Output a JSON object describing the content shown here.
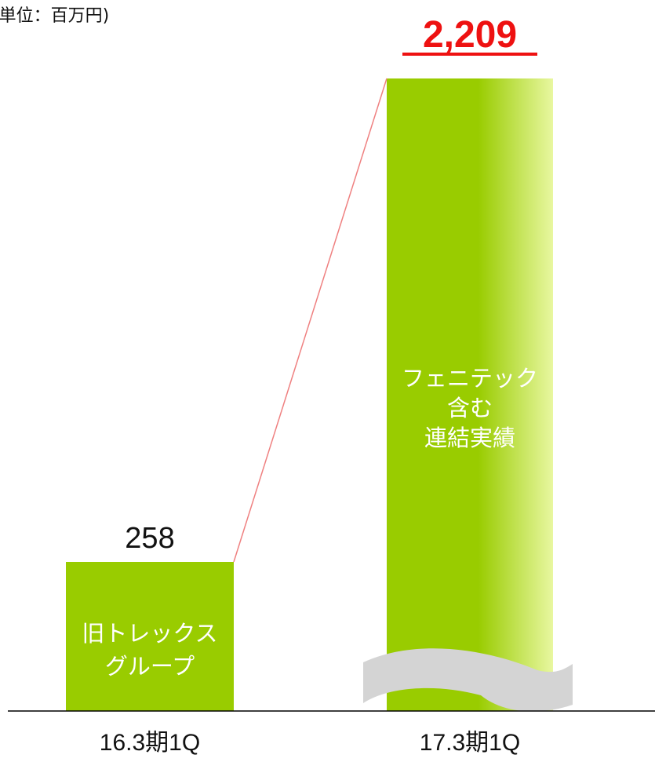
{
  "unit_label": "(単位：百万円)",
  "colors": {
    "bar": "#99cc00",
    "bar_right_highlight": "#e8f7a0",
    "connector": "#ef8080",
    "highlight_value": "#ee1111",
    "break_mark": "#d4d4d4",
    "axis": "#000000"
  },
  "chart_data": {
    "type": "bar",
    "unit": "百万円",
    "categories": [
      "16.3期1Q",
      "17.3期1Q"
    ],
    "values": [
      258,
      2209
    ],
    "value_labels": [
      "258",
      "2,209"
    ],
    "bar_labels": [
      [
        "旧トレックス",
        "グループ"
      ],
      [
        "フェニテック",
        "含む",
        "連結実績"
      ]
    ],
    "axis_break": "17.3期1Q bar (broken/truncated axis)",
    "highlighted_value_index": 1,
    "grid": false,
    "legend": "none"
  }
}
